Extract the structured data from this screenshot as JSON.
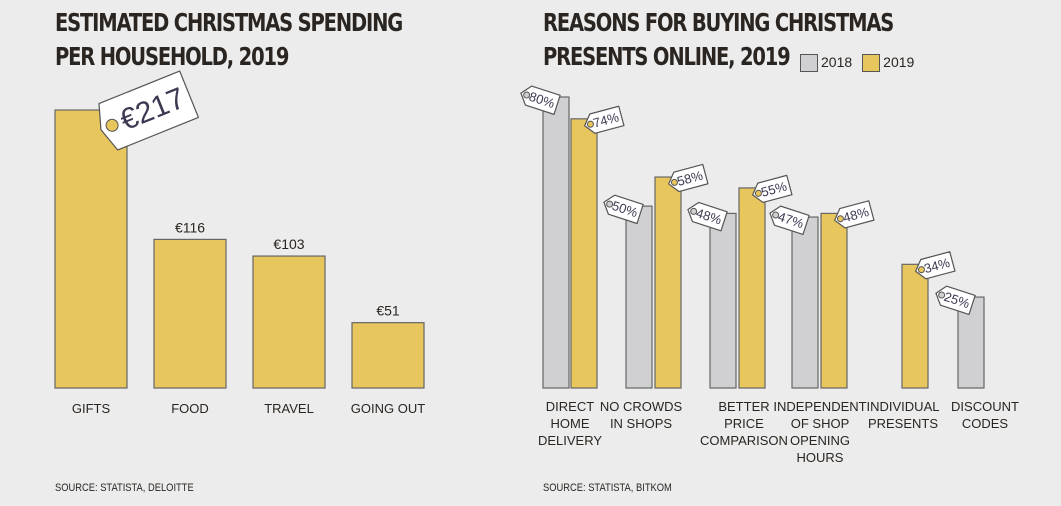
{
  "chart_data": [
    {
      "type": "bar",
      "title": "ESTIMATED CHRISTMAS SPENDING\nPER HOUSEHOLD, 2019",
      "categories": [
        "GIFTS",
        "FOOD",
        "TRAVEL",
        "GOING OUT"
      ],
      "values": [
        217,
        116,
        103,
        51
      ],
      "labels": [
        "€217",
        "€116",
        "€103",
        "€51"
      ],
      "unit": "€",
      "source": "SOURCE: STATISTA, DELOITTE"
    },
    {
      "type": "bar",
      "title": "REASONS FOR BUYING CHRISTMAS\nPRESENTS ONLINE, 2019",
      "categories": [
        "DIRECT\nHOME\nDELIVERY",
        "NO CROWDS\nIN SHOPS",
        "BETTER\nPRICE\nCOMPARISON",
        "INDEPENDENT\nOF SHOP\nOPENING\nHOURS",
        "INDIVIDUAL\nPRESENTS",
        "DISCOUNT\nCODES"
      ],
      "series": [
        {
          "name": "2018",
          "color": "#d0d0d2",
          "values": [
            80,
            50,
            48,
            47,
            null,
            25
          ],
          "labels": [
            "80%",
            "50%",
            "48%",
            "47%",
            "",
            "25%"
          ]
        },
        {
          "name": "2019",
          "color": "#e8c65e",
          "values": [
            74,
            58,
            55,
            48,
            34,
            null
          ],
          "labels": [
            "74%",
            "58%",
            "55%",
            "48%",
            "34%",
            ""
          ]
        }
      ],
      "unit": "%",
      "legend": "top-right",
      "source": "SOURCE: STATISTA, BITKOM"
    }
  ]
}
